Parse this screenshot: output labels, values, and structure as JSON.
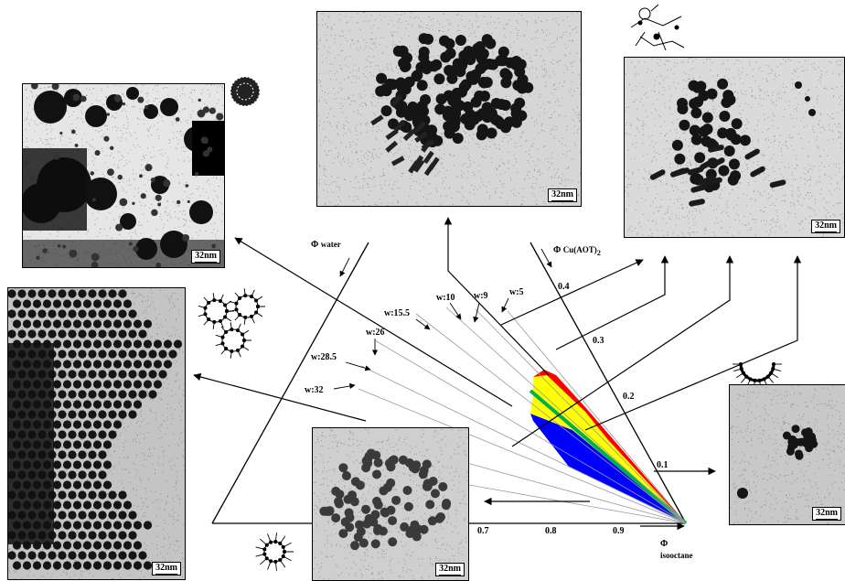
{
  "axes": {
    "water": {
      "symbol": "Φ",
      "name": "water"
    },
    "cu_aot": {
      "symbol": "Φ",
      "name": "Cu(AOT)",
      "subscript": "2"
    },
    "isooctane": {
      "symbol": "Φ",
      "name": "isooctane"
    }
  },
  "ticks_right": [
    "0.4",
    "0.3",
    "0.2",
    "0.1"
  ],
  "ticks_bottom": [
    "0.7",
    "0.8",
    "0.9"
  ],
  "w_lines": [
    "w:5",
    "w:9",
    "w:10",
    "w:15.5",
    "w:26",
    "w:28.5",
    "w:32"
  ],
  "scale_bar": "32nm",
  "region_colors": {
    "red": "#ff0000",
    "green": "#00b050",
    "yellow": "#ffff00",
    "blue": "#0000ff"
  }
}
